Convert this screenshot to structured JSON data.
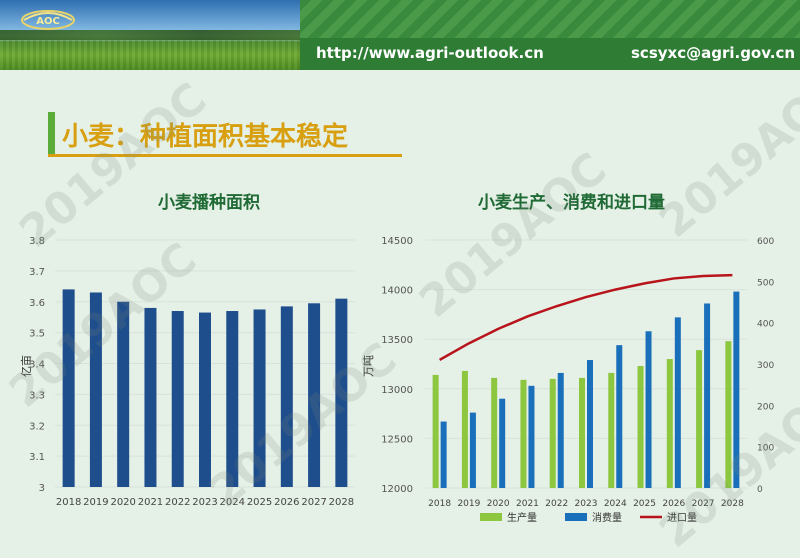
{
  "header": {
    "logo_text": "AOC",
    "url": "http://www.agri-outlook.cn",
    "email": "scsyxc@agri.gov.cn"
  },
  "slide_title": "小麦：种植面积基本稳定",
  "watermark": "2019AOC",
  "chart_data": [
    {
      "type": "bar",
      "title": "小麦播种面积",
      "ylabel": "亿亩",
      "categories": [
        "2018",
        "2019",
        "2020",
        "2021",
        "2022",
        "2023",
        "2024",
        "2025",
        "2026",
        "2027",
        "2028"
      ],
      "values": [
        3.64,
        3.63,
        3.6,
        3.58,
        3.57,
        3.565,
        3.57,
        3.575,
        3.585,
        3.595,
        3.61
      ],
      "ylim": [
        3.0,
        3.8
      ],
      "yticks": [
        "3",
        "3.1",
        "3.2",
        "3.3",
        "3.4",
        "3.5",
        "3.6",
        "3.7",
        "3.8"
      ],
      "colors": {
        "bar": "#1f4e8c",
        "grid": "#d8e2dc"
      }
    },
    {
      "type": "bar",
      "title": "小麦生产、消费和进口量",
      "ylabel": "万吨",
      "categories": [
        "2018",
        "2019",
        "2020",
        "2021",
        "2022",
        "2023",
        "2024",
        "2025",
        "2026",
        "2027",
        "2028"
      ],
      "series": [
        {
          "name": "生产量",
          "axis": "left",
          "color": "#8dc63f",
          "values": [
            13140,
            13180,
            13110,
            13090,
            13100,
            13110,
            13160,
            13230,
            13300,
            13390,
            13480
          ]
        },
        {
          "name": "消费量",
          "axis": "left",
          "color": "#1a6fba",
          "values": [
            12670,
            12760,
            12900,
            13030,
            13160,
            13290,
            13440,
            13580,
            13720,
            13860,
            13980
          ]
        }
      ],
      "line_series": [
        {
          "name": "进口量",
          "axis": "right",
          "color": "#b8141c",
          "values": [
            310,
            350,
            385,
            415,
            440,
            462,
            480,
            495,
            507,
            513,
            515
          ]
        }
      ],
      "ylim": [
        12000,
        14500
      ],
      "yticks": [
        "12000",
        "12500",
        "13000",
        "13500",
        "14000",
        "14500"
      ],
      "y2lim": [
        0,
        600
      ],
      "y2ticks": [
        "0",
        "100",
        "200",
        "300",
        "400",
        "500",
        "600"
      ],
      "legend": [
        "生产量",
        "消费量",
        "进口量"
      ],
      "legend_position": "bottom"
    }
  ]
}
